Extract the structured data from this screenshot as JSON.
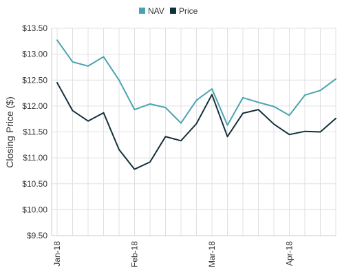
{
  "chart_data": {
    "type": "line",
    "ylabel": "Closing Price ($)",
    "xlabel": "",
    "ylim": [
      9.5,
      13.5
    ],
    "y_ticks": [
      "$9.50",
      "$10.00",
      "$10.50",
      "$11.00",
      "$11.50",
      "$12.00",
      "$12.50",
      "$13.00",
      "$13.50"
    ],
    "x_ticks": [
      {
        "label": "Jan-18",
        "index": 0
      },
      {
        "label": "Feb-18",
        "index": 5
      },
      {
        "label": "Mar-18",
        "index": 10
      },
      {
        "label": "Apr-18",
        "index": 15
      }
    ],
    "grid": true,
    "legend_position": "top-center",
    "series": [
      {
        "name": "NAV",
        "color": "#4aa3b0",
        "values": [
          13.27,
          12.85,
          12.77,
          12.95,
          12.5,
          11.93,
          12.04,
          11.97,
          11.67,
          12.11,
          12.33,
          11.63,
          12.16,
          12.07,
          11.99,
          11.82,
          12.21,
          12.3,
          12.52
        ]
      },
      {
        "name": "Price",
        "color": "#12303a",
        "values": [
          12.45,
          11.91,
          11.71,
          11.87,
          11.16,
          10.78,
          10.92,
          11.41,
          11.33,
          11.66,
          12.22,
          11.41,
          11.86,
          11.93,
          11.65,
          11.45,
          11.51,
          11.5,
          11.76
        ]
      }
    ]
  }
}
